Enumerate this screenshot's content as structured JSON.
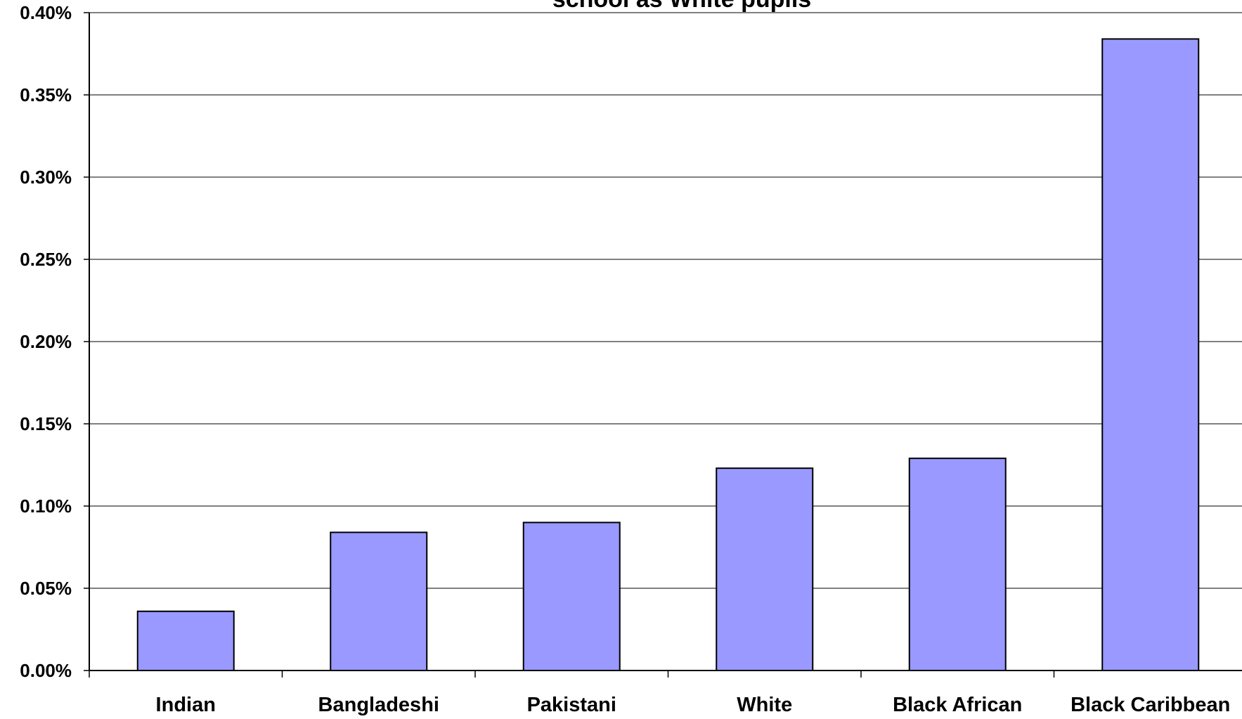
{
  "chart_data": {
    "type": "bar",
    "title": "school as White pupils",
    "categories": [
      "Indian",
      "Bangladeshi",
      "Pakistani",
      "White",
      "Black African",
      "Black Caribbean"
    ],
    "values": [
      0.036,
      0.084,
      0.09,
      0.123,
      0.129,
      0.384
    ],
    "value_unit": "%",
    "ylim": [
      0,
      0.4
    ],
    "yticks": [
      0.0,
      0.05,
      0.1,
      0.15,
      0.2,
      0.25,
      0.3,
      0.35,
      0.4
    ],
    "ytick_labels": [
      "0.00%",
      "0.05%",
      "0.10%",
      "0.15%",
      "0.20%",
      "0.25%",
      "0.30%",
      "0.35%",
      "0.40%"
    ],
    "xlabel": "",
    "ylabel": "",
    "grid": true,
    "legend": "none",
    "colors": {
      "bar_fill": "#9999ff",
      "bar_stroke": "#000000",
      "grid": "#000000",
      "axis": "#000000"
    }
  }
}
